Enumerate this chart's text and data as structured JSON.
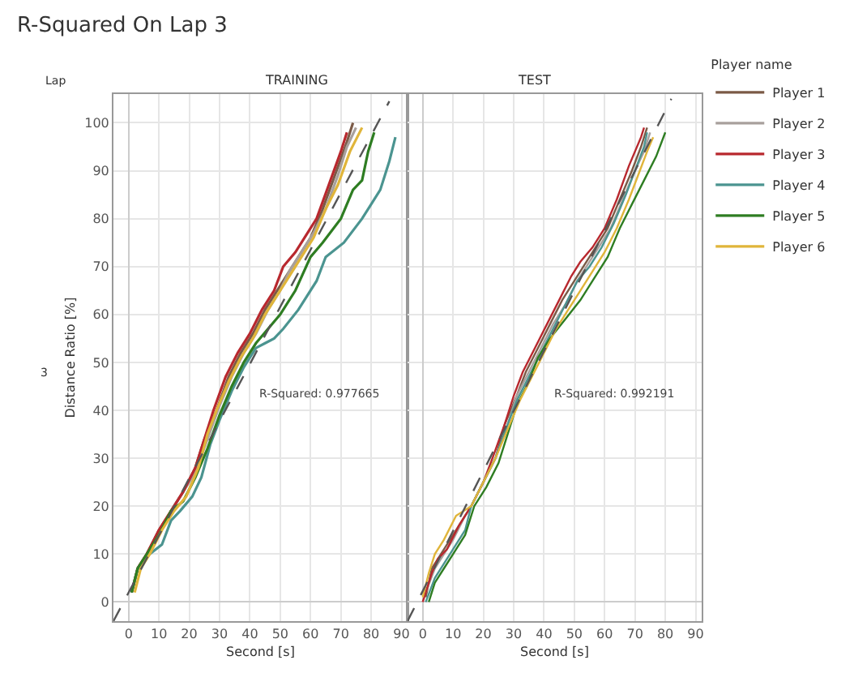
{
  "chart_data": [
    {
      "type": "line",
      "title": "R-Squared On Lap 3",
      "subtitle": "TRAINING",
      "xlabel": "Second [s]",
      "ylabel": "Distance Ratio [%]",
      "annotations": [
        "Lap",
        "3",
        "R-Squared: 0.977665"
      ],
      "legend_title": "Player name",
      "xlim": [
        -5,
        92
      ],
      "xticks": [
        0,
        10,
        20,
        30,
        40,
        50,
        60,
        70,
        80,
        90
      ],
      "ylim": [
        -4,
        106
      ],
      "yticks": [
        0,
        10,
        20,
        30,
        40,
        50,
        60,
        70,
        80,
        90,
        100
      ],
      "grid": true,
      "legend": "top right",
      "series": [
        {
          "name": "Player 1",
          "color": "#7b5a46",
          "x": [
            1,
            3,
            6,
            10,
            14,
            18,
            22,
            25,
            29,
            33,
            37,
            41,
            45,
            49,
            52,
            56,
            60,
            64,
            68,
            72,
            74
          ],
          "values": [
            2,
            7,
            10,
            15,
            19,
            23,
            28,
            34,
            40,
            47,
            52,
            56,
            61,
            65,
            68,
            72,
            76,
            82,
            89,
            96,
            100
          ]
        },
        {
          "name": "Player 2",
          "color": "#a8a09c",
          "x": [
            1,
            3,
            6,
            10,
            14,
            18,
            22,
            26,
            30,
            34,
            38,
            42,
            46,
            50,
            53,
            57,
            61,
            65,
            69,
            72,
            75
          ],
          "values": [
            2,
            7,
            10,
            14,
            19,
            23,
            27,
            34,
            41,
            47,
            52,
            56,
            61,
            65,
            69,
            73,
            77,
            82,
            89,
            95,
            99
          ]
        },
        {
          "name": "Player 3",
          "color": "#b8282e",
          "x": [
            1,
            3,
            6,
            10,
            14,
            18,
            22,
            25,
            28,
            32,
            36,
            40,
            44,
            48,
            51,
            55,
            59,
            62,
            66,
            70,
            72
          ],
          "values": [
            2,
            7,
            10,
            15,
            19,
            23,
            28,
            34,
            40,
            47,
            52,
            56,
            61,
            65,
            70,
            73,
            77,
            80,
            87,
            94,
            98
          ]
        },
        {
          "name": "Player 4",
          "color": "#4b9490",
          "x": [
            1,
            3,
            7,
            11,
            14,
            17,
            21,
            24,
            27,
            30,
            34,
            38,
            42,
            45,
            48,
            51,
            56,
            62,
            65,
            71,
            77,
            83,
            86,
            88
          ],
          "values": [
            2,
            7,
            10,
            12,
            17,
            19,
            22,
            26,
            33,
            38,
            44,
            49,
            53,
            54,
            55,
            57,
            61,
            67,
            72,
            75,
            80,
            86,
            92,
            97
          ]
        },
        {
          "name": "Player 5",
          "color": "#2e7d22",
          "x": [
            1,
            3,
            6,
            10,
            14,
            18,
            22,
            26,
            30,
            34,
            38,
            42,
            46,
            50,
            55,
            60,
            64,
            70,
            74,
            77,
            79,
            81
          ],
          "values": [
            2,
            7,
            10,
            14,
            19,
            21,
            26,
            32,
            39,
            45,
            50,
            54,
            57,
            60,
            65,
            72,
            75,
            80,
            86,
            88,
            94,
            98
          ]
        },
        {
          "name": "Player 6",
          "color": "#e0b53a",
          "x": [
            2,
            4,
            7,
            11,
            15,
            19,
            23,
            26,
            29,
            33,
            37,
            41,
            45,
            49,
            53,
            57,
            61,
            65,
            69,
            73,
            77
          ],
          "values": [
            2,
            7,
            10,
            15,
            19,
            22,
            28,
            35,
            40,
            46,
            51,
            55,
            60,
            64,
            68,
            72,
            76,
            82,
            87,
            94,
            99
          ]
        },
        {
          "type": "line",
          "color": "#555555",
          "line_style": "dashed",
          "x": [
            -5,
            86
          ],
          "values": [
            -4,
            104.5
          ]
        }
      ]
    },
    {
      "type": "line",
      "subtitle": "TEST",
      "xlabel": "Second [s]",
      "annotations": [
        "R-Squared: 0.992191"
      ],
      "xlim": [
        -5,
        92
      ],
      "xticks": [
        0,
        10,
        20,
        30,
        40,
        50,
        60,
        70,
        80,
        90
      ],
      "ylim": [
        -4,
        106
      ],
      "yticks": [
        0,
        10,
        20,
        30,
        40,
        50,
        60,
        70,
        80,
        90,
        100
      ],
      "grid": true,
      "tick_labels": "x",
      "series": [
        {
          "color": "#7b5a46",
          "x": [
            1,
            3,
            6,
            9,
            13,
            16,
            20,
            24,
            27,
            31,
            34,
            38,
            42,
            46,
            50,
            53,
            57,
            61,
            65,
            69,
            72,
            74
          ],
          "values": [
            1,
            7,
            10,
            13,
            17,
            20,
            25,
            30,
            37,
            43,
            48,
            53,
            58,
            63,
            67,
            70,
            74,
            78,
            84,
            90,
            95,
            99
          ]
        },
        {
          "color": "#a8a09c",
          "x": [
            1,
            4,
            7,
            10,
            14,
            16,
            20,
            24,
            28,
            31,
            35,
            39,
            43,
            47,
            51,
            54,
            58,
            62,
            66,
            70,
            73,
            75
          ],
          "values": [
            2,
            7,
            10,
            13,
            18,
            20,
            25,
            30,
            37,
            43,
            48,
            53,
            58,
            62,
            67,
            70,
            74,
            78,
            84,
            90,
            94,
            98
          ]
        },
        {
          "color": "#b8282e",
          "x": [
            0,
            3,
            5,
            8,
            12,
            16,
            20,
            23,
            27,
            30,
            33,
            37,
            41,
            45,
            49,
            52,
            56,
            60,
            64,
            68,
            72,
            73
          ],
          "values": [
            0,
            6,
            9,
            11,
            16,
            20,
            25,
            30,
            37,
            43,
            48,
            53,
            58,
            63,
            68,
            71,
            74,
            78,
            84,
            91,
            97,
            99
          ]
        },
        {
          "color": "#4b9490",
          "x": [
            1,
            4,
            7,
            10,
            14,
            16,
            20,
            24,
            28,
            31,
            35,
            39,
            43,
            47,
            51,
            55,
            59,
            63,
            67,
            70,
            73,
            74
          ],
          "values": [
            0,
            5,
            8,
            11,
            15,
            20,
            25,
            30,
            37,
            42,
            47,
            52,
            57,
            62,
            67,
            70,
            74,
            79,
            85,
            90,
            95,
            98
          ]
        },
        {
          "color": "#2e7d22",
          "x": [
            2,
            4,
            7,
            10,
            14,
            17,
            21,
            25,
            28,
            31,
            35,
            38,
            42,
            47,
            52,
            56,
            61,
            65,
            69,
            73,
            77,
            80
          ],
          "values": [
            0,
            4,
            7,
            10,
            14,
            20,
            24,
            29,
            35,
            41,
            46,
            51,
            55,
            59,
            63,
            67,
            72,
            78,
            83,
            88,
            93,
            98
          ]
        },
        {
          "color": "#e0b53a",
          "x": [
            0,
            2,
            4,
            7,
            11,
            16,
            20,
            24,
            28,
            32,
            36,
            40,
            44,
            48,
            52,
            56,
            60,
            64,
            68,
            71,
            74,
            76
          ],
          "values": [
            1,
            6,
            10,
            13,
            18,
            20,
            25,
            30,
            36,
            42,
            47,
            52,
            57,
            61,
            65,
            69,
            73,
            78,
            84,
            89,
            94,
            97
          ]
        },
        {
          "type": "line",
          "color": "#555555",
          "line_style": "dashed",
          "x": [
            -5,
            82
          ],
          "values": [
            -4,
            105
          ]
        }
      ]
    }
  ]
}
